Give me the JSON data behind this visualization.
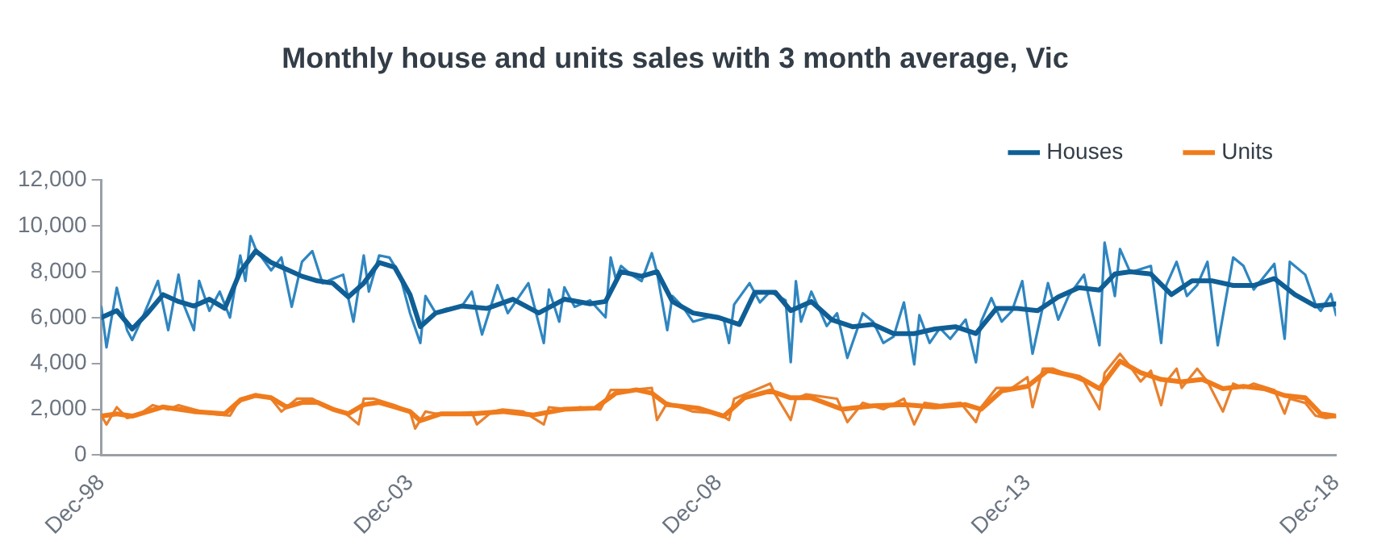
{
  "chart_data": {
    "type": "line",
    "title": "Monthly house and units sales with 3 month average, Vic",
    "legend": "top right",
    "grid": false,
    "marker": "none",
    "line_style": "solid",
    "xlim": [
      "1998-12",
      "2018-12"
    ],
    "xticks": [
      {
        "value": "1998-12",
        "label": "Dec-98"
      },
      {
        "value": "2003-12",
        "label": "Dec-03"
      },
      {
        "value": "2008-12",
        "label": "Dec-08"
      },
      {
        "value": "2013-12",
        "label": "Dec-13"
      },
      {
        "value": "2018-12",
        "label": "Dec-18"
      }
    ],
    "ylim": [
      0,
      12000
    ],
    "yticks": [
      {
        "value": 0,
        "label": "0"
      },
      {
        "value": 2000,
        "label": "2,000"
      },
      {
        "value": 4000,
        "label": "4,000"
      },
      {
        "value": 6000,
        "label": "6,000"
      },
      {
        "value": 8000,
        "label": "8,000"
      },
      {
        "value": 10000,
        "label": "10,000"
      },
      {
        "value": 12000,
        "label": "12,000"
      }
    ],
    "series": [
      {
        "color": "#2f86c0",
        "x": [
          "1998-12",
          "1999-01",
          "1999-03",
          "1999-05",
          "1999-06",
          "1999-08",
          "1999-11",
          "2000-01",
          "2000-03",
          "2000-04",
          "2000-06",
          "2000-07",
          "2000-09",
          "2000-11",
          "2001-01",
          "2001-03",
          "2001-04",
          "2001-05",
          "2001-06",
          "2001-09",
          "2001-11",
          "2002-01",
          "2002-03",
          "2002-05",
          "2002-07",
          "2002-09",
          "2002-11",
          "2003-01",
          "2003-03",
          "2003-04",
          "2003-06",
          "2003-08",
          "2003-10",
          "2003-12",
          "2004-02",
          "2004-03",
          "2004-05",
          "2004-07",
          "2004-10",
          "2004-12",
          "2005-02",
          "2005-05",
          "2005-07",
          "2005-11",
          "2006-02",
          "2006-03",
          "2006-05",
          "2006-06",
          "2006-08",
          "2006-11",
          "2007-02",
          "2007-03",
          "2007-04",
          "2007-05",
          "2007-07",
          "2007-09",
          "2007-11",
          "2007-12",
          "2008-02",
          "2008-03",
          "2008-05",
          "2008-07",
          "2008-10",
          "2009-01",
          "2009-02",
          "2009-03",
          "2009-06",
          "2009-08",
          "2009-10",
          "2010-01",
          "2010-02",
          "2010-03",
          "2010-04",
          "2010-06",
          "2010-09",
          "2010-11",
          "2011-01",
          "2011-04",
          "2011-06",
          "2011-08",
          "2011-10",
          "2011-12",
          "2012-02",
          "2012-03",
          "2012-05",
          "2012-07",
          "2012-09",
          "2012-12",
          "2013-02",
          "2013-03",
          "2013-05",
          "2013-07",
          "2013-09",
          "2013-11",
          "2014-01",
          "2014-04",
          "2014-06",
          "2014-08",
          "2014-11",
          "2015-02",
          "2015-03",
          "2015-05",
          "2015-06",
          "2015-08",
          "2015-12",
          "2016-02",
          "2016-03",
          "2016-05",
          "2016-07",
          "2016-09",
          "2016-11",
          "2017-01",
          "2017-04",
          "2017-06",
          "2017-08",
          "2017-12",
          "2018-02",
          "2018-03",
          "2018-06",
          "2018-08",
          "2018-09",
          "2018-11",
          "2018-12"
        ],
        "values": [
          6470,
          4700,
          7300,
          5450,
          5020,
          6000,
          7600,
          5450,
          7870,
          6570,
          5450,
          7600,
          6290,
          7130,
          6000,
          8710,
          7600,
          9550,
          8990,
          8060,
          8620,
          6470,
          8430,
          8900,
          7500,
          7690,
          7870,
          5820,
          8710,
          7130,
          8710,
          8620,
          7870,
          6190,
          4890,
          6940,
          6190,
          6380,
          6470,
          7130,
          5260,
          7410,
          6190,
          7500,
          4890,
          7220,
          5820,
          7320,
          6470,
          6750,
          6010,
          8620,
          7690,
          8250,
          7870,
          7590,
          8810,
          7970,
          5450,
          6940,
          6470,
          5820,
          6010,
          5910,
          4890,
          6570,
          7500,
          6660,
          7130,
          6750,
          4050,
          7590,
          5820,
          7130,
          5630,
          6190,
          4240,
          6190,
          5820,
          4890,
          5170,
          6660,
          3960,
          6100,
          4890,
          5540,
          5070,
          5910,
          4050,
          5820,
          6850,
          5820,
          6290,
          7590,
          4420,
          7500,
          5910,
          6940,
          7870,
          4790,
          9270,
          6940,
          8990,
          7970,
          8250,
          4890,
          7410,
          8430,
          6940,
          7410,
          8430,
          4790,
          8620,
          8250,
          7220,
          8340,
          5070,
          8430,
          7870,
          6570,
          6290,
          7030,
          6100
        ]
      },
      {
        "name": "Houses",
        "color": "#0f5f96",
        "x": [
          "1998-12",
          "1999-03",
          "1999-06",
          "1999-09",
          "1999-12",
          "2000-03",
          "2000-06",
          "2000-09",
          "2000-12",
          "2001-03",
          "2001-06",
          "2001-09",
          "2001-12",
          "2002-03",
          "2002-06",
          "2002-09",
          "2002-12",
          "2003-03",
          "2003-06",
          "2003-09",
          "2003-12",
          "2004-02",
          "2004-05",
          "2004-10",
          "2005-03",
          "2005-08",
          "2006-01",
          "2006-06",
          "2006-11",
          "2007-02",
          "2007-05",
          "2007-09",
          "2007-12",
          "2008-03",
          "2008-07",
          "2008-12",
          "2009-04",
          "2009-07",
          "2009-11",
          "2010-02",
          "2010-06",
          "2010-10",
          "2011-02",
          "2011-06",
          "2011-10",
          "2012-02",
          "2012-06",
          "2012-10",
          "2013-02",
          "2013-06",
          "2013-10",
          "2014-02",
          "2014-06",
          "2014-10",
          "2015-02",
          "2015-05",
          "2015-08",
          "2015-12",
          "2016-04",
          "2016-08",
          "2016-12",
          "2017-04",
          "2017-08",
          "2017-12",
          "2018-04",
          "2018-08",
          "2018-12"
        ],
        "values": [
          6000,
          6300,
          5500,
          6200,
          7000,
          6700,
          6500,
          6800,
          6400,
          8000,
          8900,
          8400,
          8100,
          7800,
          7600,
          7500,
          6900,
          7500,
          8400,
          8200,
          7000,
          5600,
          6200,
          6500,
          6400,
          6800,
          6200,
          6800,
          6600,
          6700,
          8000,
          7800,
          8000,
          6700,
          6200,
          6000,
          5700,
          7100,
          7100,
          6300,
          6700,
          5900,
          5600,
          5700,
          5300,
          5300,
          5500,
          5600,
          5300,
          6400,
          6400,
          6300,
          6900,
          7300,
          7200,
          7900,
          8000,
          7900,
          7000,
          7600,
          7600,
          7400,
          7400,
          7700,
          7000,
          6500,
          6600
        ]
      },
      {
        "color": "#e8812f",
        "x": [
          "1998-12",
          "1999-01",
          "1999-03",
          "1999-05",
          "1999-07",
          "1999-10",
          "2000-01",
          "2000-03",
          "2000-06",
          "2000-09",
          "2001-01",
          "2001-03",
          "2001-06",
          "2001-09",
          "2001-11",
          "2002-02",
          "2002-05",
          "2002-08",
          "2002-11",
          "2003-02",
          "2003-03",
          "2003-05",
          "2003-09",
          "2003-12",
          "2004-01",
          "2004-03",
          "2004-05",
          "2004-09",
          "2004-12",
          "2005-01",
          "2005-04",
          "2005-06",
          "2005-10",
          "2006-02",
          "2006-03",
          "2006-07",
          "2006-09",
          "2007-01",
          "2007-03",
          "2007-05",
          "2007-07",
          "2007-11",
          "2007-12",
          "2008-02",
          "2008-07",
          "2008-12",
          "2009-02",
          "2009-03",
          "2009-06",
          "2009-10",
          "2009-11",
          "2010-02",
          "2010-03",
          "2010-05",
          "2010-11",
          "2011-01",
          "2011-04",
          "2011-08",
          "2011-12",
          "2012-02",
          "2012-04",
          "2012-07",
          "2012-11",
          "2013-02",
          "2013-03",
          "2013-06",
          "2013-09",
          "2013-12",
          "2014-01",
          "2014-03",
          "2014-05",
          "2014-08",
          "2014-11",
          "2015-02",
          "2015-03",
          "2015-06",
          "2015-08",
          "2015-10",
          "2015-12",
          "2016-02",
          "2016-03",
          "2016-05",
          "2016-06",
          "2016-09",
          "2016-11",
          "2017-02",
          "2017-04",
          "2017-06",
          "2017-08",
          "2017-12",
          "2018-02",
          "2018-03",
          "2018-06",
          "2018-08",
          "2018-10",
          "2018-12"
        ],
        "values": [
          1720,
          1340,
          2090,
          1620,
          1720,
          2180,
          1990,
          2180,
          1990,
          1810,
          1720,
          2460,
          2650,
          2460,
          1900,
          2460,
          2460,
          2090,
          1900,
          1340,
          2460,
          2460,
          2180,
          1900,
          1160,
          1900,
          1810,
          1810,
          1870,
          1340,
          1900,
          1990,
          1900,
          1340,
          2090,
          1990,
          2090,
          1990,
          2840,
          2840,
          2840,
          2930,
          1530,
          2280,
          1900,
          1810,
          1530,
          2460,
          2740,
          3120,
          2650,
          1530,
          2460,
          2650,
          2460,
          1440,
          2280,
          2000,
          2460,
          1340,
          2280,
          2180,
          2280,
          1440,
          2090,
          2930,
          2930,
          3400,
          2090,
          3770,
          3770,
          3490,
          3210,
          2000,
          3580,
          4420,
          3860,
          3210,
          3680,
          2180,
          3210,
          3770,
          2930,
          3770,
          3210,
          1900,
          3120,
          2930,
          3120,
          2840,
          1810,
          2460,
          2280,
          1720,
          1620,
          1680
        ]
      },
      {
        "name": "Units",
        "color": "#f07b1c",
        "x": [
          "1998-12",
          "1999-03",
          "1999-06",
          "1999-09",
          "1999-12",
          "2000-03",
          "2000-06",
          "2000-09",
          "2000-12",
          "2001-03",
          "2001-06",
          "2001-09",
          "2001-12",
          "2002-03",
          "2002-06",
          "2002-09",
          "2002-12",
          "2003-03",
          "2003-06",
          "2003-09",
          "2003-12",
          "2004-02",
          "2004-06",
          "2004-12",
          "2005-06",
          "2005-12",
          "2006-06",
          "2006-12",
          "2007-04",
          "2007-08",
          "2007-11",
          "2008-02",
          "2008-08",
          "2009-01",
          "2009-05",
          "2009-10",
          "2010-02",
          "2010-06",
          "2010-12",
          "2011-06",
          "2011-12",
          "2012-06",
          "2012-12",
          "2013-03",
          "2013-07",
          "2013-12",
          "2014-04",
          "2014-10",
          "2015-02",
          "2015-06",
          "2015-10",
          "2016-02",
          "2016-06",
          "2016-10",
          "2017-02",
          "2017-06",
          "2017-10",
          "2018-02",
          "2018-06",
          "2018-09",
          "2018-12"
        ],
        "values": [
          1700,
          1800,
          1700,
          1900,
          2100,
          2000,
          1900,
          1850,
          1800,
          2400,
          2600,
          2500,
          2100,
          2300,
          2300,
          2000,
          1800,
          2200,
          2300,
          2100,
          1900,
          1500,
          1800,
          1800,
          1900,
          1750,
          2000,
          2050,
          2700,
          2850,
          2700,
          2200,
          2050,
          1700,
          2500,
          2800,
          2500,
          2500,
          2000,
          2150,
          2200,
          2100,
          2200,
          2000,
          2800,
          3000,
          3700,
          3400,
          2900,
          4100,
          3600,
          3300,
          3200,
          3300,
          2900,
          3000,
          2900,
          2600,
          2500,
          1800,
          1700
        ]
      }
    ]
  }
}
